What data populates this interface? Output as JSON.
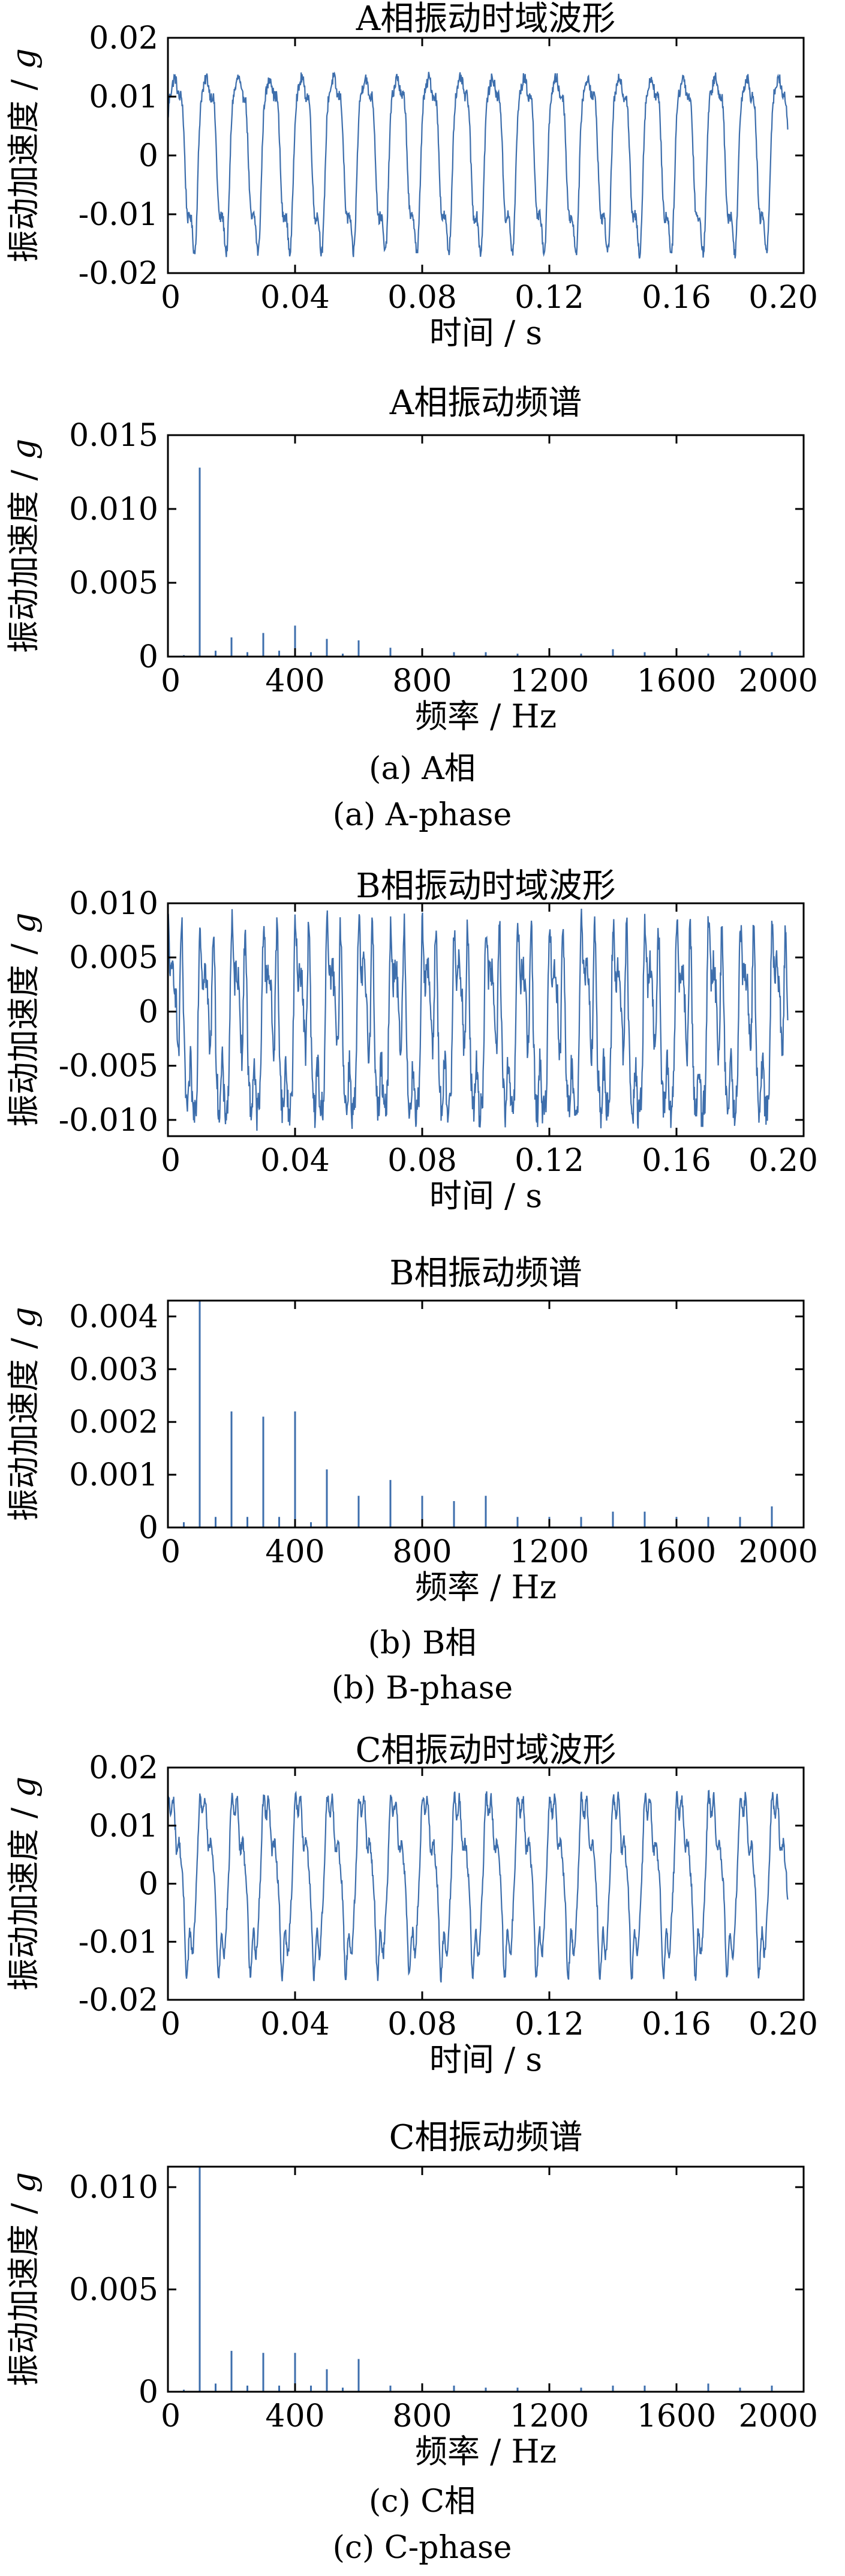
{
  "line_color": "#3d6eac",
  "chart_data": [
    {
      "type": "line",
      "id": "a-time",
      "title": "A相振动时域波形",
      "xlabel": "时间 / s",
      "ylabel_text": "振动加速度 / ",
      "ylabel_unit": "g",
      "xlim": [
        0,
        0.2
      ],
      "ylim": [
        -0.02,
        0.02
      ],
      "xticks": [
        "0",
        "0.04",
        "0.08",
        "0.12",
        "0.16",
        "0.20"
      ],
      "xtick_values": [
        0,
        0.04,
        0.08,
        0.12,
        0.16,
        0.2
      ],
      "yticks": [
        "0.02",
        "0.01",
        "0",
        "-0.01",
        "-0.02"
      ],
      "ytick_values": [
        0.02,
        0.01,
        0,
        -0.01,
        -0.02
      ],
      "x_end": 0.195,
      "waveform": {
        "fundamental_hz": 100,
        "harmonics": [
          [
            1,
            0.0125,
            0
          ],
          [
            2,
            0.0022,
            1.0
          ],
          [
            3,
            0.002,
            0.4
          ],
          [
            4,
            0.0018,
            2.1
          ]
        ],
        "noise": 0.0009,
        "min": -0.0175,
        "max": 0.0142
      }
    },
    {
      "type": "bar",
      "id": "a-spec",
      "title": "A相振动频谱",
      "xlabel": "频率 / Hz",
      "ylabel_text": "振动加速度 / ",
      "ylabel_unit": "g",
      "xlim": [
        0,
        2000
      ],
      "ylim": [
        0,
        0.015
      ],
      "xticks": [
        "0",
        "400",
        "800",
        "1200",
        "1600",
        "2000"
      ],
      "xtick_values": [
        0,
        400,
        800,
        1200,
        1600,
        2000
      ],
      "yticks": [
        "0.015",
        "0.010",
        "0.005",
        "0"
      ],
      "ytick_values": [
        0.015,
        0.01,
        0.005,
        0
      ],
      "x": [
        50,
        100,
        150,
        200,
        250,
        300,
        350,
        400,
        450,
        500,
        550,
        600,
        700,
        800,
        900,
        1000,
        1100,
        1200,
        1300,
        1400,
        1500,
        1600,
        1700,
        1800,
        1900
      ],
      "values": [
        0.0001,
        0.0128,
        0.0004,
        0.0013,
        0.0003,
        0.0016,
        0.0004,
        0.0021,
        0.0003,
        0.0012,
        0.0002,
        0.0011,
        0.0006,
        0.0004,
        0.0003,
        0.0003,
        0.0002,
        0.0003,
        0.0002,
        0.0005,
        0.0003,
        0.0004,
        0.0002,
        0.0004,
        0.0003
      ],
      "caption_cn": "(a) A相",
      "caption_en": "(a) A-phase"
    },
    {
      "type": "line",
      "id": "b-time",
      "title": "B相振动时域波形",
      "xlabel": "时间 / s",
      "ylabel_text": "振动加速度 / ",
      "ylabel_unit": "g",
      "xlim": [
        0,
        0.2
      ],
      "ylim": [
        -0.0115,
        0.01
      ],
      "xticks": [
        "0",
        "0.04",
        "0.08",
        "0.12",
        "0.16",
        "0.20"
      ],
      "xtick_values": [
        0,
        0.04,
        0.08,
        0.12,
        0.16,
        0.2
      ],
      "yticks": [
        "0.010",
        "0.005",
        "0",
        "-0.005",
        "-0.010"
      ],
      "ytick_values": [
        0.01,
        0.005,
        0,
        -0.005,
        -0.01
      ],
      "x_end": 0.195,
      "waveform": {
        "fundamental_hz": 100,
        "harmonics": [
          [
            1,
            0.0045,
            0.3
          ],
          [
            2,
            0.0022,
            1.4
          ],
          [
            3,
            0.0021,
            0.2
          ],
          [
            4,
            0.0022,
            2.5
          ],
          [
            5,
            0.0011,
            0.9
          ],
          [
            7,
            0.0009,
            1.7
          ]
        ],
        "noise": 0.0012,
        "min": -0.011,
        "max": 0.0095
      }
    },
    {
      "type": "bar",
      "id": "b-spec",
      "title": "B相振动频谱",
      "xlabel": "频率 / Hz",
      "ylabel_text": "振动加速度 / ",
      "ylabel_unit": "g",
      "xlim": [
        0,
        2000
      ],
      "ylim": [
        0,
        0.0043
      ],
      "xticks": [
        "0",
        "400",
        "800",
        "1200",
        "1600",
        "2000"
      ],
      "xtick_values": [
        0,
        400,
        800,
        1200,
        1600,
        2000
      ],
      "yticks": [
        "0.004",
        "0.003",
        "0.002",
        "0.001",
        "0"
      ],
      "ytick_values": [
        0.004,
        0.003,
        0.002,
        0.001,
        0
      ],
      "x": [
        50,
        100,
        150,
        200,
        250,
        300,
        350,
        400,
        450,
        500,
        600,
        700,
        800,
        900,
        1000,
        1100,
        1200,
        1300,
        1400,
        1500,
        1600,
        1700,
        1800,
        1900
      ],
      "values": [
        0.0001,
        0.0043,
        0.0002,
        0.0022,
        0.0002,
        0.0021,
        0.0002,
        0.0022,
        0.0001,
        0.0011,
        0.0006,
        0.0009,
        0.0006,
        0.0005,
        0.0006,
        0.0002,
        0.0002,
        0.0002,
        0.0003,
        0.0003,
        0.0002,
        0.0002,
        0.0002,
        0.0004
      ],
      "caption_cn": "(b) B相",
      "caption_en": "(b) B-phase"
    },
    {
      "type": "line",
      "id": "c-time",
      "title": "C相振动时域波形",
      "xlabel": "时间 / s",
      "ylabel_text": "振动加速度 / ",
      "ylabel_unit": "g",
      "xlim": [
        0,
        0.2
      ],
      "ylim": [
        -0.02,
        0.02
      ],
      "xticks": [
        "0",
        "0.04",
        "0.08",
        "0.12",
        "0.16",
        "0.20"
      ],
      "xtick_values": [
        0,
        0.04,
        0.08,
        0.12,
        0.16,
        0.2
      ],
      "yticks": [
        "0.02",
        "0.01",
        "0",
        "-0.01",
        "-0.02"
      ],
      "ytick_values": [
        0.02,
        0.01,
        0,
        -0.01,
        -0.02
      ],
      "x_end": 0.195,
      "waveform": {
        "fundamental_hz": 100,
        "harmonics": [
          [
            1,
            0.011,
            0.6
          ],
          [
            2,
            0.002,
            1.8
          ],
          [
            3,
            0.0018,
            0.7
          ],
          [
            4,
            0.0019,
            2.9
          ],
          [
            6,
            0.0014,
            1.2
          ]
        ],
        "noise": 0.0009,
        "min": -0.017,
        "max": 0.016
      }
    },
    {
      "type": "bar",
      "id": "c-spec",
      "title": "C相振动频谱",
      "xlabel": "频率 / Hz",
      "ylabel_text": "振动加速度 / ",
      "ylabel_unit": "g",
      "xlim": [
        0,
        2000
      ],
      "ylim": [
        0,
        0.011
      ],
      "xticks": [
        "0",
        "400",
        "800",
        "1200",
        "1600",
        "2000"
      ],
      "xtick_values": [
        0,
        400,
        800,
        1200,
        1600,
        2000
      ],
      "yticks": [
        "0.010",
        "0.005",
        "0"
      ],
      "ytick_values": [
        0.01,
        0.005,
        0
      ],
      "x": [
        50,
        100,
        150,
        200,
        250,
        300,
        350,
        400,
        450,
        500,
        550,
        600,
        700,
        800,
        900,
        1000,
        1100,
        1200,
        1300,
        1400,
        1500,
        1600,
        1700,
        1800,
        1900
      ],
      "values": [
        0.0001,
        0.011,
        0.0004,
        0.002,
        0.0003,
        0.0019,
        0.0003,
        0.0019,
        0.0003,
        0.0011,
        0.0002,
        0.0016,
        0.0003,
        0.0002,
        0.0003,
        0.0002,
        0.0002,
        0.0003,
        0.0002,
        0.0003,
        0.0003,
        0.0002,
        0.0004,
        0.0002,
        0.0003
      ],
      "caption_cn": "(c) C相",
      "caption_en": "(c) C-phase"
    }
  ]
}
